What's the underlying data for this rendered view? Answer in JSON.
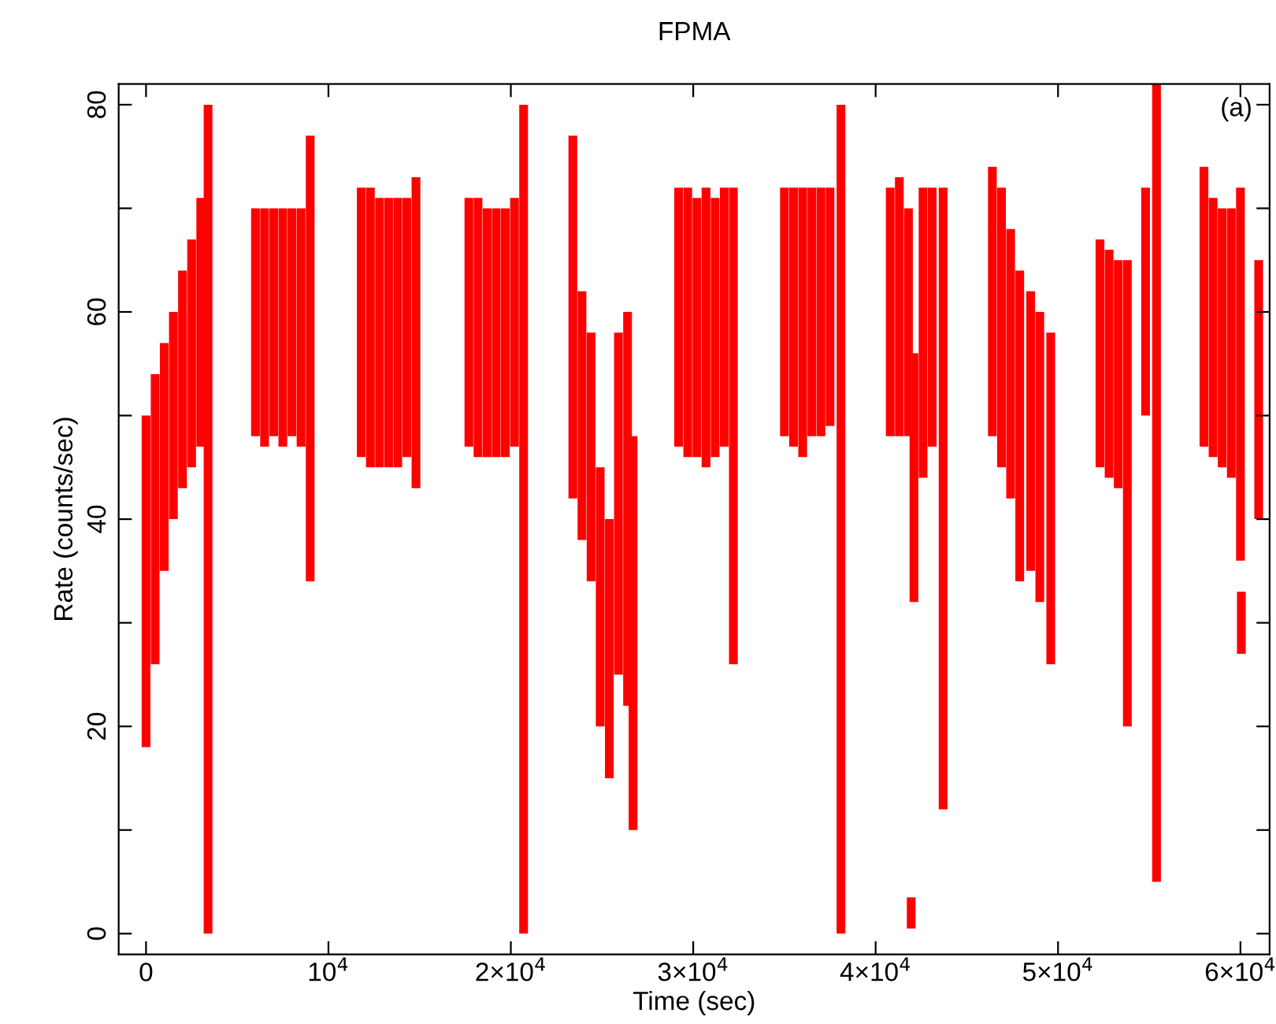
{
  "chart_data": {
    "type": "bar",
    "title": "FPMA",
    "xlabel": "Time (sec)",
    "ylabel": "Rate (counts/sec)",
    "annotations": [
      "(a)"
    ],
    "xlim": [
      -1500,
      61600
    ],
    "ylim": [
      -2,
      82
    ],
    "xticks": [
      0,
      {
        "value": 10000,
        "label": "10$^{4}$"
      },
      {
        "value": 20000,
        "label": "2×10$^{4}$"
      },
      {
        "value": 30000,
        "label": "3×10$^{4}$"
      },
      {
        "value": 40000,
        "label": "4×10$^{4}$"
      },
      {
        "value": 50000,
        "label": "5×10$^{4}$"
      },
      {
        "value": 60000,
        "label": "6×10$^{4}$"
      }
    ],
    "yticks": [
      0,
      {
        "value": 10,
        "label": null
      },
      20,
      {
        "value": 30,
        "label": null
      },
      40,
      {
        "value": 50,
        "label": null
      },
      60,
      {
        "value": 70,
        "label": null
      },
      80
    ],
    "grid": false,
    "series": [
      {
        "color": "#ff0000",
        "x": [
          0,
          500,
          1000,
          1500,
          2000,
          2500,
          3000,
          3400,
          6000,
          6500,
          7000,
          7500,
          8000,
          8500,
          9000,
          11800,
          12300,
          12800,
          13300,
          13800,
          14300,
          14800,
          17700,
          18200,
          18700,
          19200,
          19700,
          20200,
          20700,
          23400,
          23900,
          24400,
          24900,
          25400,
          25900,
          26400,
          26700,
          29200,
          29700,
          30200,
          30700,
          31200,
          31700,
          32200,
          35000,
          35500,
          36000,
          36500,
          37000,
          37500,
          38100,
          40800,
          41300,
          41800,
          41950,
          42100,
          42600,
          43100,
          43700,
          46400,
          46900,
          47400,
          47900,
          48500,
          49000,
          49600,
          52300,
          52800,
          53300,
          53800,
          54800,
          55400,
          58000,
          58500,
          59000,
          59500,
          60000,
          60050,
          61000
        ],
        "base": [
          18,
          26,
          35,
          40,
          43,
          45,
          47,
          0,
          48,
          47,
          48,
          47,
          48,
          47,
          34,
          46,
          45,
          45,
          45,
          45,
          46,
          43,
          47,
          46,
          46,
          46,
          46,
          47,
          0,
          42,
          38,
          34,
          20,
          15,
          25,
          22,
          10,
          47,
          46,
          46,
          45,
          46,
          47,
          26,
          48,
          47,
          46,
          48,
          48,
          49,
          0,
          48,
          48,
          48,
          0.5,
          32,
          44,
          47,
          12,
          48,
          45,
          42,
          34,
          35,
          32,
          26,
          45,
          44,
          43,
          20,
          50,
          5,
          47,
          46,
          45,
          44,
          36,
          27,
          40
        ],
        "values": [
          32,
          28,
          22,
          20,
          21,
          22,
          24,
          80,
          22,
          23,
          22,
          23,
          22,
          23,
          43,
          26,
          27,
          26,
          26,
          26,
          25,
          30,
          24,
          25,
          24,
          24,
          24,
          24,
          80,
          35,
          24,
          24,
          25,
          25,
          33,
          38,
          38,
          25,
          26,
          25,
          27,
          25,
          25,
          46,
          24,
          25,
          26,
          24,
          24,
          23,
          80,
          24,
          25,
          22,
          3,
          24,
          28,
          25,
          60,
          26,
          27,
          26,
          30,
          27,
          28,
          32,
          22,
          22,
          22,
          45,
          22,
          77,
          27,
          25,
          25,
          26,
          36,
          6,
          25
        ]
      }
    ]
  }
}
